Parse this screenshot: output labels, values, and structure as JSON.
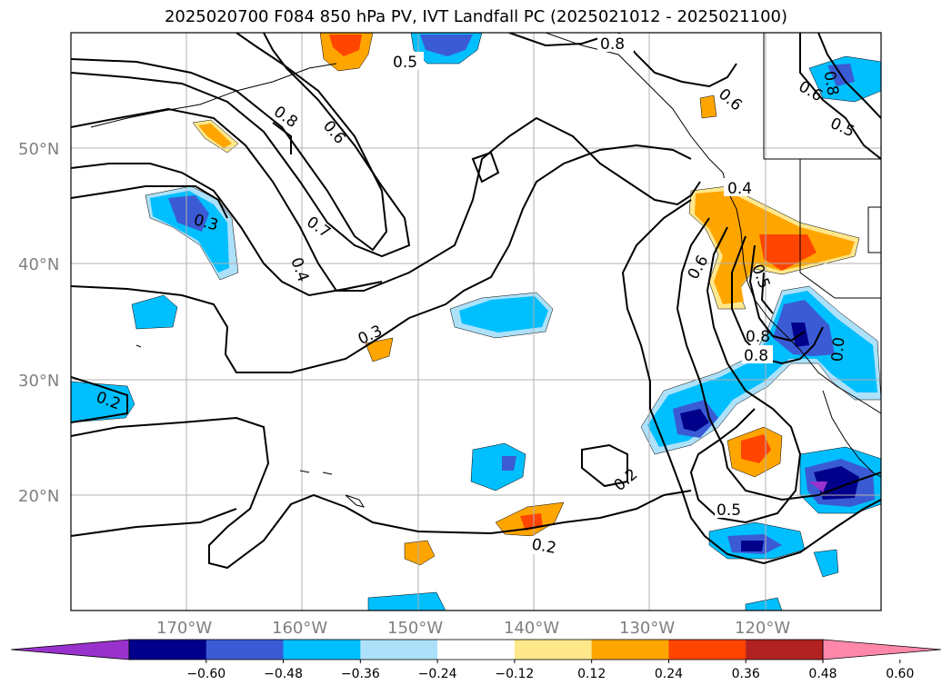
{
  "title": "2025020700 F084 850 hPa PV, IVT Landfall PC (2025021012 - 2025021100)",
  "lat_labels": [
    "50°N",
    "40°N",
    "30°N",
    "20°N"
  ],
  "lon_labels": [
    "170°W",
    "160°W",
    "150°W",
    "140°W",
    "130°W",
    "120°W"
  ],
  "contour_labels": [
    "0.8",
    "0.5",
    "0.6",
    "0.8",
    "0.6",
    "0.8",
    "0.5",
    "0.6",
    "0.8",
    "0.7",
    "0.4",
    "0.3",
    "0.3",
    "0.4",
    "0.6",
    "0.5",
    "0.8",
    "0.2",
    "0.2",
    "0.5",
    "0.2",
    "0.0"
  ],
  "colorbar": {
    "colors": [
      "#9932CC",
      "#00008B",
      "#3B5BD5",
      "#00BFFF",
      "#ADE1FA",
      "#FFFFFF",
      "#FFE88C",
      "#FFA500",
      "#FF4500",
      "#B22222",
      "#FF88AA"
    ],
    "tick_labels": [
      "−0.60",
      "−0.48",
      "−0.36",
      "−0.24",
      "−0.12",
      "0.12",
      "0.24",
      "0.36",
      "0.48",
      "0.60"
    ]
  }
}
